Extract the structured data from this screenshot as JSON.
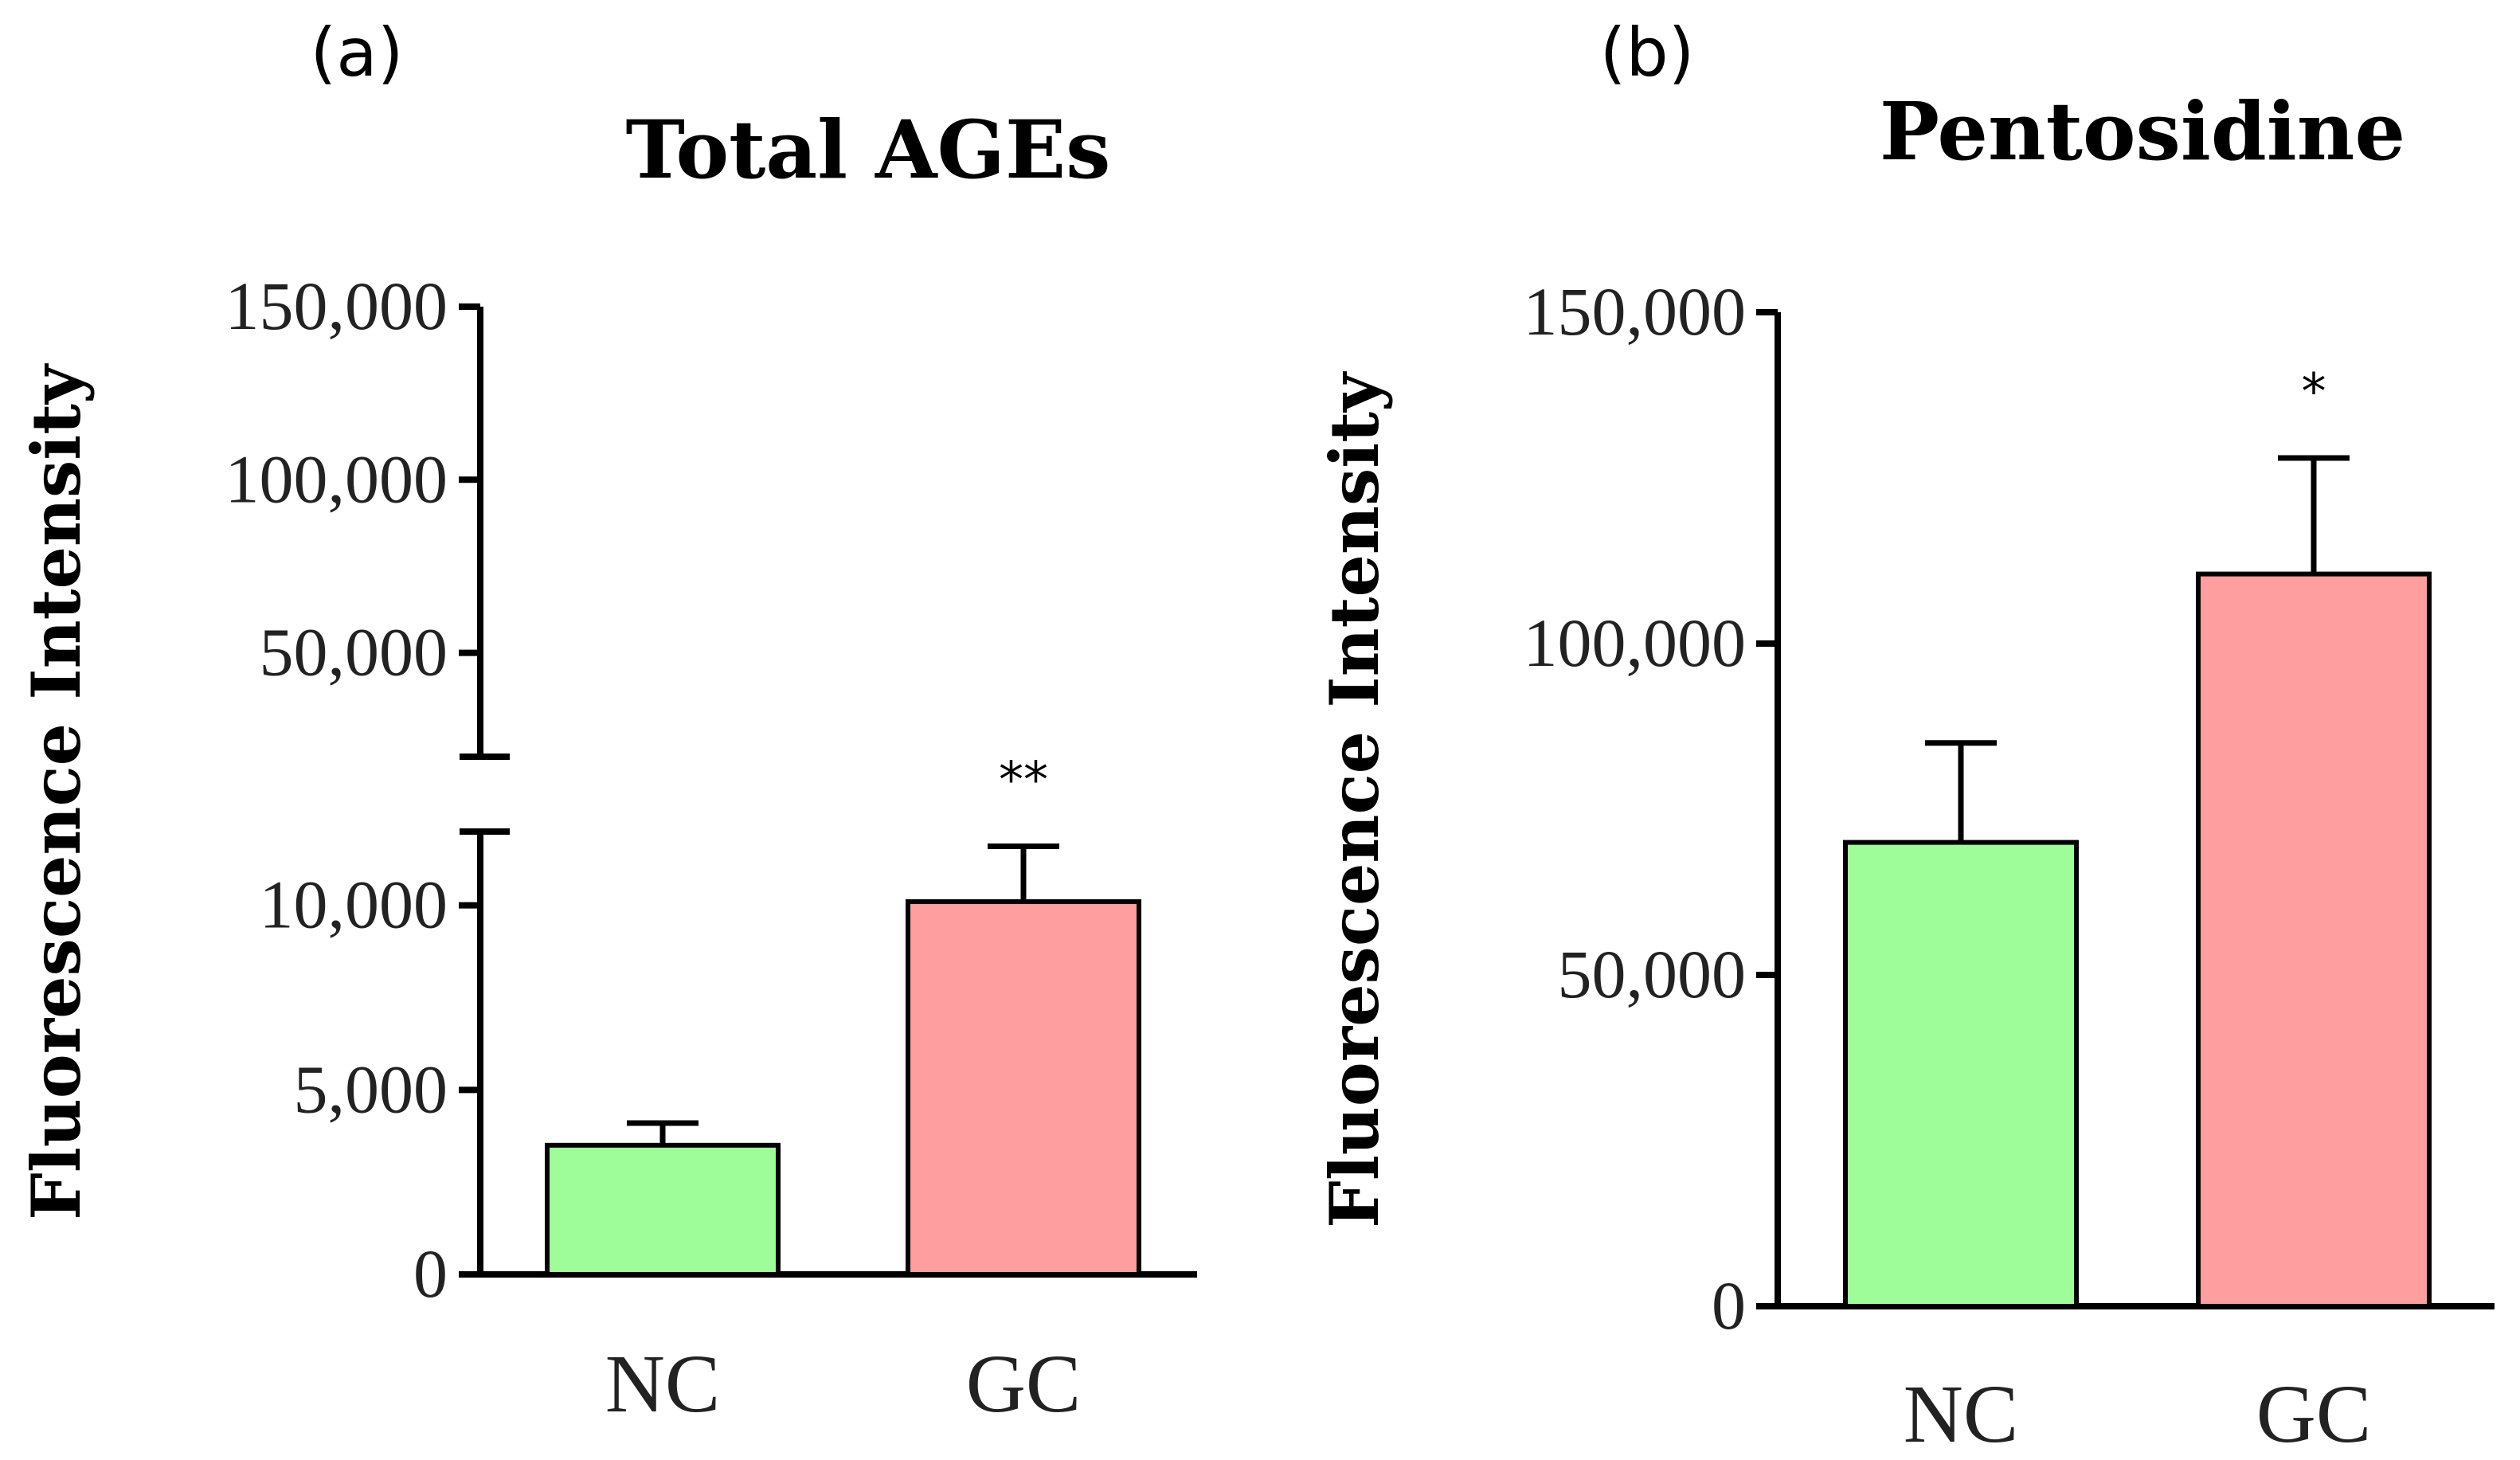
{
  "panels": {
    "a": {
      "label": "(a)"
    },
    "b": {
      "label": "(b)"
    }
  },
  "colors": {
    "NC": "#9efd99",
    "GC": "#fe9e9e"
  },
  "chart_data": [
    {
      "type": "bar",
      "title": "Total AGEs",
      "xlabel": "",
      "ylabel": "Fluorescence Intensity",
      "categories": [
        "NC",
        "GC"
      ],
      "values": [
        3500,
        10100
      ],
      "errors": [
        600,
        1500
      ],
      "significance": [
        "",
        "**"
      ],
      "y_axis_break": true,
      "ylim_lower": [
        0,
        12000
      ],
      "ylim_upper": [
        20000,
        150000
      ],
      "lower_ticks": [
        0,
        5000,
        10000
      ],
      "lower_tick_labels": [
        "0",
        "5,000",
        "10,000"
      ],
      "upper_ticks": [
        50000,
        100000,
        150000
      ],
      "upper_tick_labels": [
        "50,000",
        "100,000",
        "150,000"
      ]
    },
    {
      "type": "bar",
      "title": "Pentosidine",
      "xlabel": "",
      "ylabel": "Fluorescence Intensity",
      "categories": [
        "NC",
        "GC"
      ],
      "values": [
        70000,
        110500
      ],
      "errors": [
        15000,
        17500
      ],
      "significance": [
        "",
        "*"
      ],
      "ylim": [
        0,
        150000
      ],
      "ticks": [
        0,
        50000,
        100000,
        150000
      ],
      "tick_labels": [
        "0",
        "50,000",
        "100,000",
        "150,000"
      ]
    }
  ]
}
